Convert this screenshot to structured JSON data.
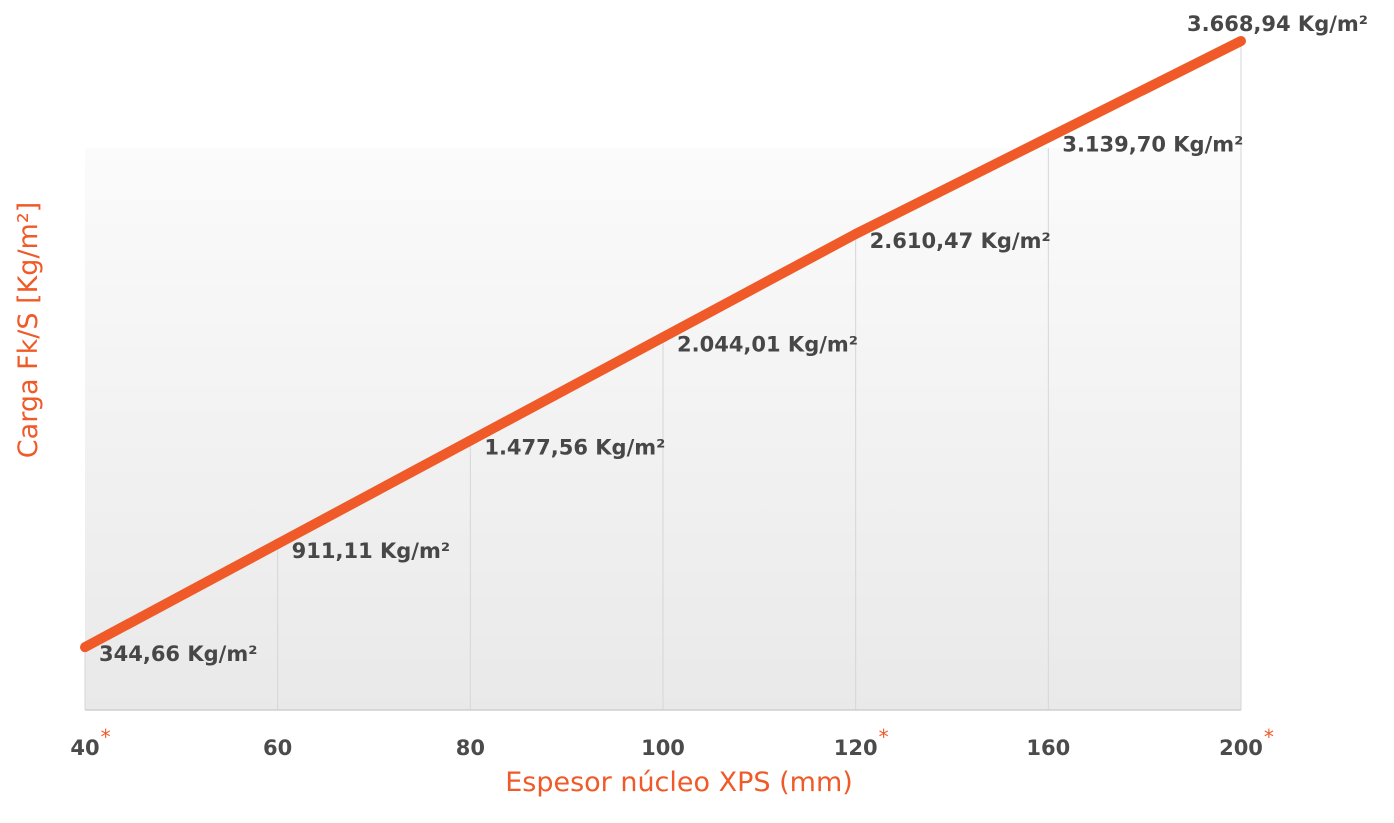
{
  "chart_data": {
    "type": "line",
    "x": [
      40,
      60,
      80,
      100,
      120,
      160,
      200
    ],
    "categories": [
      "40",
      "60",
      "80",
      "100",
      "120",
      "160",
      "200"
    ],
    "starred": [
      true,
      false,
      false,
      false,
      true,
      false,
      true
    ],
    "values": [
      344.66,
      911.11,
      1477.56,
      2044.01,
      2610.47,
      3139.7,
      3668.94
    ],
    "data_labels": [
      "344,66 Kg/m²",
      "911,11 Kg/m²",
      "1.477,56 Kg/m²",
      "2.044,01 Kg/m²",
      "2.610,47 Kg/m²",
      "3.139,70 Kg/m²",
      "3.668,94 Kg/m²"
    ],
    "xlabel": "Espesor núcleo XPS (mm)",
    "ylabel": "Carga Fk/S [Kg/m²]",
    "x_scale": "categorical-equal-spacing",
    "ylim": [
      0,
      4000
    ],
    "grid": "vertical",
    "legend": "none",
    "colors": {
      "line": "#ef5a28",
      "axis_title": "#ef5a28",
      "tick_label": "#4b4b4b",
      "data_label": "#474747",
      "grid": "#d6d6d6",
      "background_top": "#fbfbfb",
      "background_bottom": "#e9e9e9",
      "tick_star": "#ef5a28"
    }
  }
}
